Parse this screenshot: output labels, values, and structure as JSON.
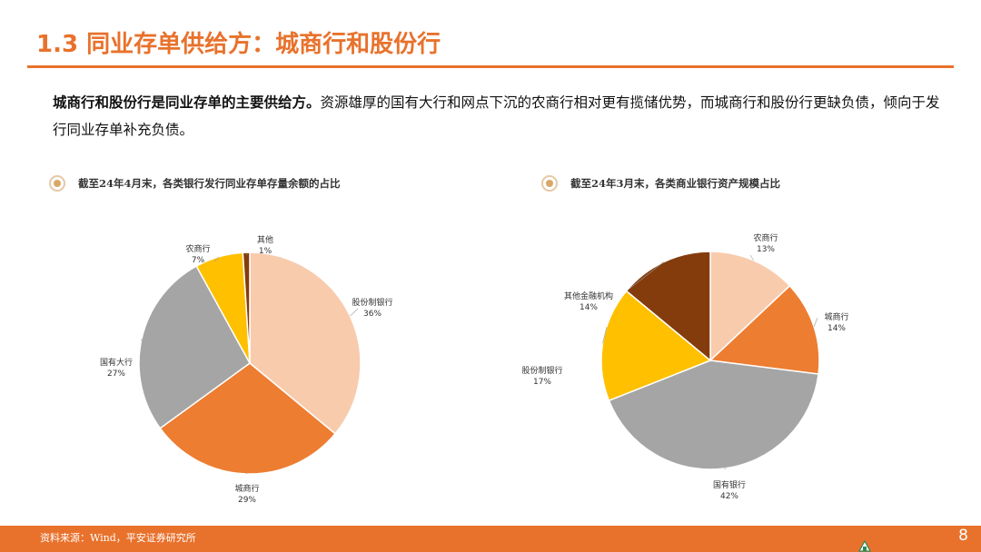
{
  "slide": {
    "title": "1.3 同业存单供给方：城商行和股份行",
    "intro_lead": "城商行和股份行是同业存单的主要供给方。",
    "intro_rest": "资源雄厚的国有大行和网点下沉的农商行相对更有揽储优势，而城商行和股份行更缺负债，倾向于发行同业存单补充负债。",
    "source": "资料来源：Wind，平安证券研究所",
    "page": "8",
    "accent_color": "#e8722c"
  },
  "chart_data": [
    {
      "type": "pie",
      "title": "截至24年4月末，各类银行发行同业存单存量余额的占比",
      "categories": [
        "股份制银行",
        "城商行",
        "国有大行",
        "农商行",
        "其他"
      ],
      "values": [
        36,
        29,
        27,
        7,
        1
      ],
      "labels": [
        "36%",
        "29%",
        "27%",
        "7%",
        "1%"
      ],
      "colors": [
        "#f8cbad",
        "#ed7d31",
        "#a5a5a5",
        "#ffc000",
        "#843c0c"
      ]
    },
    {
      "type": "pie",
      "title": "截至24年3月末，各类商业银行资产规模占比",
      "categories": [
        "农商行",
        "城商行",
        "国有银行",
        "股份制银行",
        "其他金融机构"
      ],
      "values": [
        13,
        14,
        42,
        17,
        14
      ],
      "labels": [
        "13%",
        "14%",
        "42%",
        "17%",
        "14%"
      ],
      "colors": [
        "#f8cbad",
        "#ed7d31",
        "#a5a5a5",
        "#ffc000",
        "#843c0c"
      ]
    }
  ]
}
